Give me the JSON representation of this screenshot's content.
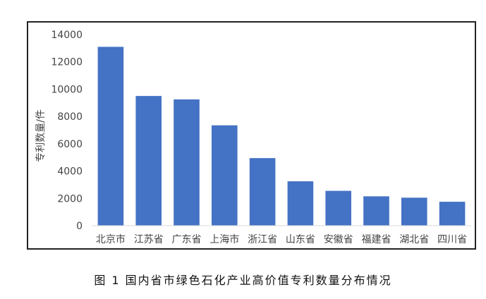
{
  "chart_data": {
    "type": "bar",
    "categories": [
      "北京市",
      "江苏省",
      "广东省",
      "上海市",
      "浙江省",
      "山东省",
      "安徽省",
      "福建省",
      "湖北省",
      "四川省"
    ],
    "values": [
      13100,
      9500,
      9250,
      7350,
      4950,
      3250,
      2550,
      2150,
      2050,
      1750
    ],
    "ylabel": "专利数量/件",
    "ylim": [
      0,
      14000
    ],
    "yticks": [
      0,
      2000,
      4000,
      6000,
      8000,
      10000,
      12000,
      14000
    ],
    "grid": false,
    "bar_color": "#4472C4"
  },
  "caption": "图 1 国内省市绿色石化产业高价值专利数量分布情况"
}
